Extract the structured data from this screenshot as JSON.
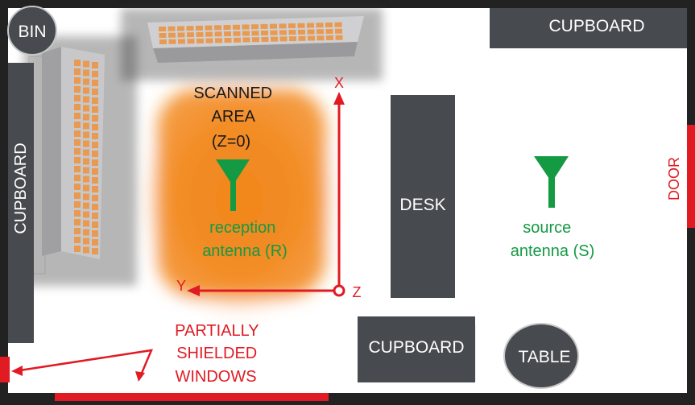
{
  "labels": {
    "bin": "BIN",
    "cupboard_top": "CUPBOARD",
    "cupboard_left": "CUPBOARD",
    "cupboard_bottom": "CUPBOARD",
    "desk": "DESK",
    "table": "TABLE",
    "door": "DOOR",
    "scanned_area": [
      "SCANNED",
      "AREA",
      "(Z=0)"
    ],
    "reception_antenna": [
      "reception",
      "antenna (R)"
    ],
    "source_antenna": [
      "source",
      "antenna (S)"
    ],
    "axis_x": "X",
    "axis_y": "Y",
    "axis_z": "Z",
    "windows": [
      "PARTIALLY",
      "SHIELDED",
      "WINDOWS"
    ]
  },
  "colors": {
    "floor": "#ffffff",
    "border": "#222222",
    "furniture": "#474a4e",
    "furniture_label": "#ffffff",
    "radiator_body": "#b5b5b7",
    "radiator_cell": "#e89a52",
    "scanned_glow": "#f07d10",
    "axis_red": "#e01b24",
    "antenna_green": "#139a43",
    "shield_red": "#e01b24"
  },
  "icons": {
    "antenna": "horn-antenna-icon",
    "radiator": "radiator-heater-icon"
  }
}
